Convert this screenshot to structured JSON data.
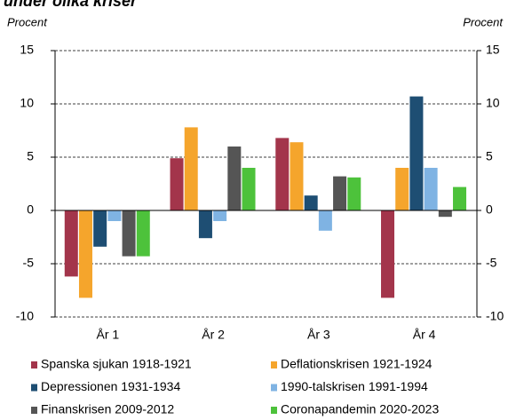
{
  "chart_data": {
    "type": "bar",
    "title": "under olika kriser",
    "ylabel": "Procent",
    "y2label": "Procent",
    "categories": [
      "År 1",
      "År 2",
      "År 3",
      "År 4"
    ],
    "series": [
      {
        "name": "Spanska sjukan 1918-1921",
        "color": "#a3354b",
        "values": [
          -6.2,
          4.9,
          6.8,
          -8.2
        ]
      },
      {
        "name": "Deflationskrisen 1921-1924",
        "color": "#f5a52c",
        "values": [
          -8.2,
          7.8,
          6.4,
          4.0
        ]
      },
      {
        "name": "Depressionen  1931-1934",
        "color": "#1e4e73",
        "values": [
          -3.4,
          -2.6,
          1.4,
          10.7
        ]
      },
      {
        "name": "1990-talskrisen 1991-1994",
        "color": "#7fb3e3",
        "values": [
          -1.0,
          -1.0,
          -1.9,
          4.0
        ]
      },
      {
        "name": "Finanskrisen 2009-2012",
        "color": "#555555",
        "values": [
          -4.3,
          6.0,
          3.2,
          -0.6
        ]
      },
      {
        "name": "Coronapandemin 2020-2023",
        "color": "#4dc23b",
        "values": [
          -4.3,
          4.0,
          3.1,
          2.2
        ]
      }
    ],
    "ylim": [
      -10,
      15
    ],
    "yticks": [
      -10,
      -5,
      0,
      5,
      10,
      15
    ],
    "y2lim": [
      -10,
      15
    ],
    "y2ticks": [
      -10,
      -5,
      0,
      5,
      10,
      15
    ],
    "grid": true
  }
}
